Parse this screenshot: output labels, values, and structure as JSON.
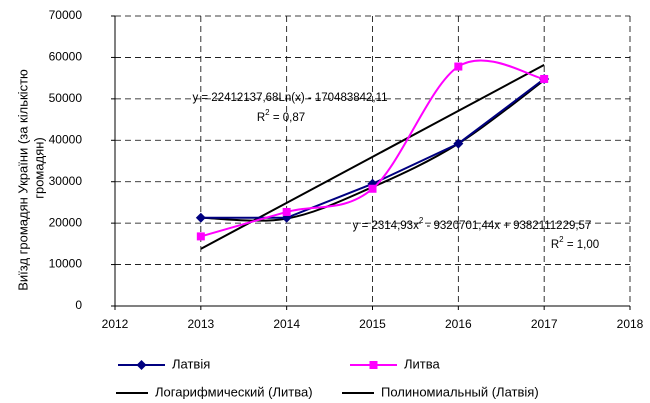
{
  "chart_data": {
    "type": "line",
    "ylabel": [
      "Виїзд громадян України (за кількістю",
      "громадян)"
    ],
    "x": [
      2013,
      2014,
      2015,
      2016,
      2017
    ],
    "series": [
      {
        "name": "Латвія",
        "color": "#000080",
        "marker": "diamond",
        "smooth": false,
        "values": [
          21300,
          21300,
          29500,
          39200,
          54800
        ]
      },
      {
        "name": "Литва",
        "color": "#ff00ff",
        "marker": "square",
        "smooth": true,
        "values": [
          16800,
          22700,
          28300,
          57800,
          54800
        ]
      },
      {
        "name": "Логарифмический (Литва)",
        "color": "#000000",
        "marker": "none",
        "smooth": true,
        "values": [
          13800,
          24900,
          36000,
          47100,
          58200
        ]
      },
      {
        "name": "Полиномиальный (Латвія)",
        "color": "#000000",
        "marker": "none",
        "smooth": true,
        "values": [
          21300,
          21100,
          28700,
          39200,
          54500
        ]
      }
    ],
    "annotations": [
      {
        "parts": [
          "y = 22412137,68Ln(x) - 170483842,11"
        ]
      },
      {
        "parts": [
          "R",
          "2",
          " = 0,87"
        ]
      },
      {
        "parts": [
          "y = 2314,93x",
          "2",
          " - 9320701,44x + 9382111229,57"
        ]
      },
      {
        "parts": [
          "R",
          "2",
          " = 1,00"
        ]
      }
    ],
    "xlim": [
      2012,
      2018
    ],
    "xticks": [
      2012,
      2013,
      2014,
      2015,
      2016,
      2017,
      2018
    ],
    "ylim": [
      0,
      70000
    ],
    "yticks": [
      0,
      10000,
      20000,
      30000,
      40000,
      50000,
      60000,
      70000
    ],
    "grid": true
  }
}
